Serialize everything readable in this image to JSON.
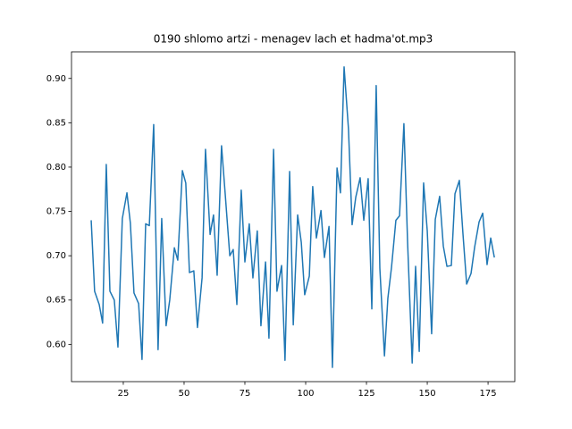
{
  "chart_data": {
    "type": "line",
    "title": "0190 shlomo artzi - menagev lach et hadma'ot.mp3",
    "x": [
      11.8,
      13.2,
      15.1,
      16.5,
      18.0,
      19.5,
      21.3,
      22.8,
      24.6,
      26.5,
      27.9,
      29.4,
      31.3,
      32.7,
      34.2,
      35.7,
      37.5,
      39.3,
      40.8,
      42.6,
      44.1,
      46.0,
      47.4,
      49.3,
      50.7,
      52.2,
      54.0,
      55.5,
      57.4,
      58.8,
      60.7,
      62.1,
      63.6,
      65.4,
      66.9,
      68.8,
      70.2,
      71.7,
      73.5,
      75.0,
      76.8,
      78.3,
      80.1,
      81.6,
      83.5,
      84.9,
      86.8,
      88.2,
      90.1,
      91.5,
      93.4,
      94.9,
      96.7,
      98.2,
      99.6,
      101.5,
      102.9,
      104.4,
      106.3,
      107.7,
      109.6,
      111.0,
      112.9,
      114.3,
      115.8,
      117.6,
      119.1,
      120.6,
      122.4,
      123.9,
      125.7,
      127.2,
      129.0,
      130.5,
      132.4,
      133.8,
      135.3,
      137.1,
      138.6,
      140.4,
      141.9,
      143.8,
      145.2,
      146.7,
      148.5,
      150.0,
      151.8,
      153.3,
      155.1,
      156.6,
      158.1,
      159.9,
      161.4,
      163.2,
      164.7,
      166.2,
      168.0,
      169.5,
      171.3,
      172.8,
      174.6,
      176.1,
      177.6
    ],
    "series": [
      {
        "color": "#1f77b4",
        "values": [
          0.74,
          0.66,
          0.645,
          0.624,
          0.803,
          0.66,
          0.65,
          0.597,
          0.742,
          0.771,
          0.737,
          0.658,
          0.646,
          0.583,
          0.736,
          0.734,
          0.848,
          0.594,
          0.742,
          0.621,
          0.65,
          0.709,
          0.695,
          0.796,
          0.782,
          0.681,
          0.683,
          0.619,
          0.675,
          0.82,
          0.724,
          0.746,
          0.678,
          0.824,
          0.77,
          0.7,
          0.707,
          0.645,
          0.774,
          0.693,
          0.736,
          0.675,
          0.728,
          0.621,
          0.693,
          0.607,
          0.82,
          0.66,
          0.689,
          0.582,
          0.795,
          0.622,
          0.746,
          0.715,
          0.656,
          0.677,
          0.778,
          0.72,
          0.751,
          0.698,
          0.733,
          0.574,
          0.799,
          0.771,
          0.913,
          0.843,
          0.735,
          0.766,
          0.788,
          0.74,
          0.787,
          0.64,
          0.892,
          0.686,
          0.587,
          0.652,
          0.687,
          0.74,
          0.745,
          0.849,
          0.716,
          0.579,
          0.688,
          0.592,
          0.782,
          0.728,
          0.612,
          0.741,
          0.767,
          0.711,
          0.688,
          0.689,
          0.77,
          0.785,
          0.724,
          0.668,
          0.68,
          0.71,
          0.738,
          0.748,
          0.69,
          0.72,
          0.698
        ]
      }
    ],
    "xlim": [
      3.7,
      186
    ],
    "ylim": [
      0.558,
      0.93
    ],
    "xticks": [
      25,
      50,
      75,
      100,
      125,
      150,
      175
    ],
    "yticks": [
      {
        "value": 0.6,
        "label": "0.60"
      },
      {
        "value": 0.65,
        "label": "0.65"
      },
      {
        "value": 0.7,
        "label": "0.70"
      },
      {
        "value": 0.75,
        "label": "0.75"
      },
      {
        "value": 0.8,
        "label": "0.80"
      },
      {
        "value": 0.85,
        "label": "0.85"
      },
      {
        "value": 0.9,
        "label": "0.90"
      }
    ]
  }
}
